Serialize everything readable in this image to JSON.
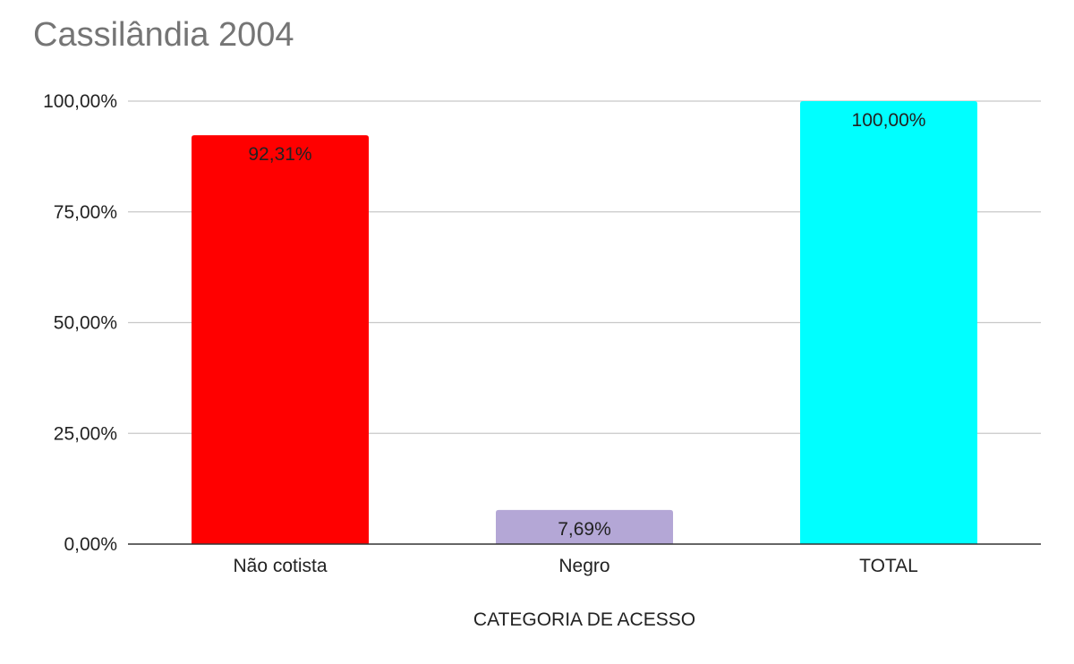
{
  "chart_data": {
    "type": "bar",
    "title": "Cassilândia 2004",
    "xlabel": "CATEGORIA DE ACESSO",
    "ylabel": "",
    "categories": [
      "Não cotista",
      "Negro",
      "TOTAL"
    ],
    "values": [
      92.31,
      7.69,
      100.0
    ],
    "data_labels": [
      "92,31%",
      "7,69%",
      "100,00%"
    ],
    "bar_colors": [
      "#ff0000",
      "#b4a7d6",
      "#00ffff"
    ],
    "ylim": [
      0,
      100
    ],
    "yticks": [
      0,
      25,
      50,
      75,
      100
    ],
    "ytick_labels": [
      "0,00%",
      "25,00%",
      "50,00%",
      "75,00%",
      "100,00%"
    ],
    "grid": true,
    "legend": "none"
  }
}
